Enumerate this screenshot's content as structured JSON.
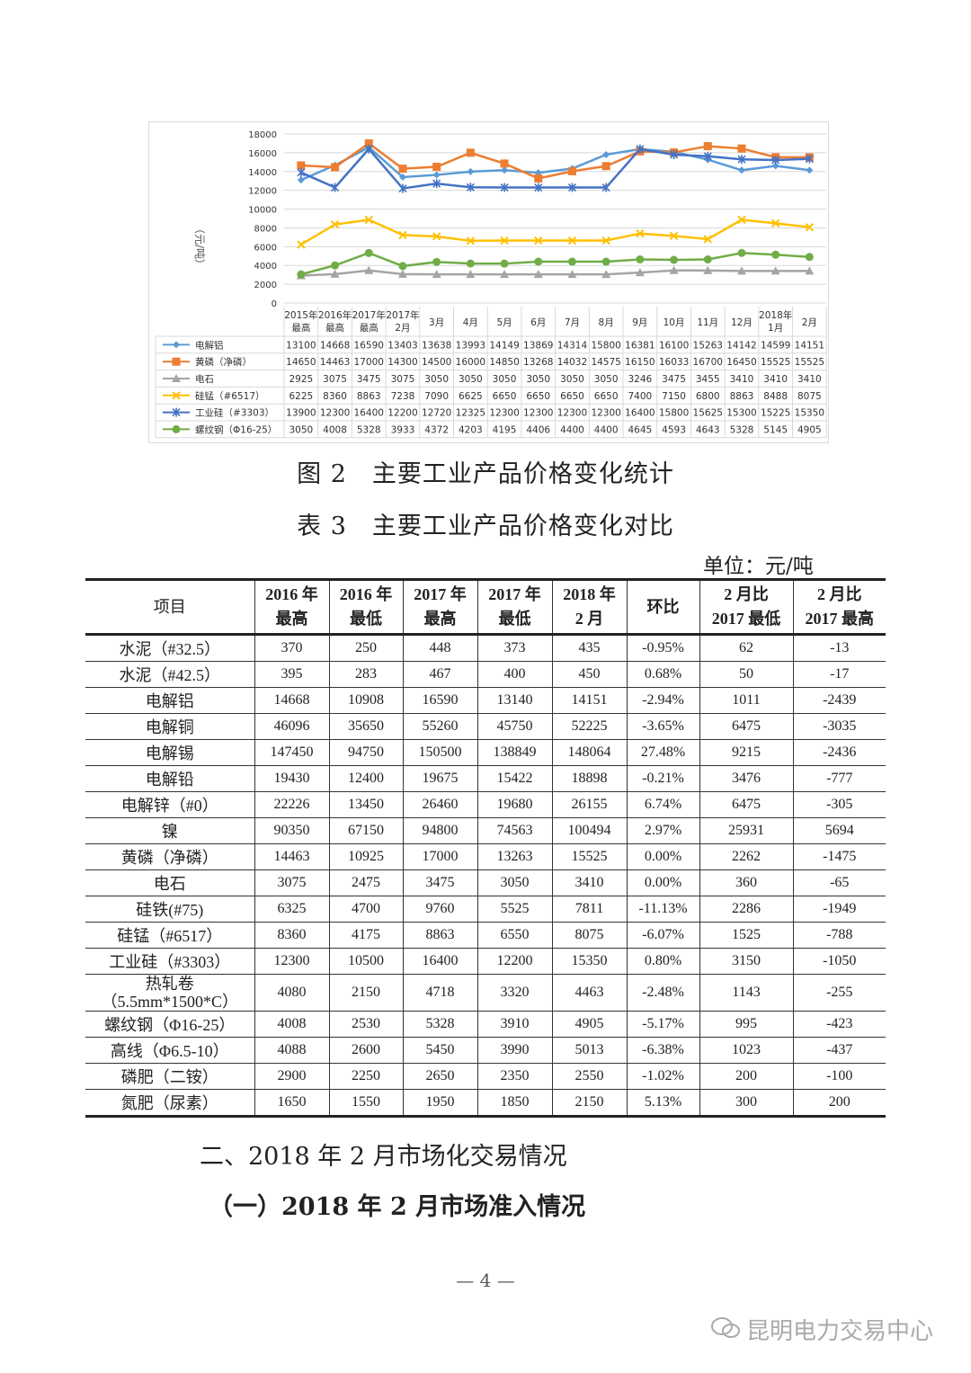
{
  "chart_data": {
    "type": "line",
    "ylabel": "（元/吨）",
    "ylim": [
      0,
      18000
    ],
    "yticks": [
      0,
      2000,
      4000,
      6000,
      8000,
      10000,
      12000,
      14000,
      16000,
      18000
    ],
    "grid": true,
    "legend": "table-left",
    "categories": [
      [
        "2015年",
        "最高"
      ],
      [
        "2016年",
        "最高"
      ],
      [
        "2017年",
        "最高"
      ],
      [
        "2017年",
        "2月"
      ],
      [
        "3月"
      ],
      [
        "4月"
      ],
      [
        "5月"
      ],
      [
        "6月"
      ],
      [
        "7月"
      ],
      [
        "8月"
      ],
      [
        "9月"
      ],
      [
        "10月"
      ],
      [
        "11月"
      ],
      [
        "12月"
      ],
      [
        "2018年",
        "1月"
      ],
      [
        "2月"
      ]
    ],
    "series": [
      {
        "name": "电解铝",
        "color": "#5b9bd5",
        "marker": "diamond",
        "values": [
          13100,
          14668,
          16590,
          13403,
          13638,
          13993,
          14149,
          13869,
          14314,
          15800,
          16381,
          16100,
          15263,
          14142,
          14599,
          14151
        ]
      },
      {
        "name": "黄磷（净磷）",
        "color": "#ed7d31",
        "marker": "square",
        "values": [
          14650,
          14463,
          17000,
          14300,
          14500,
          16000,
          14850,
          13268,
          14032,
          14575,
          16150,
          16033,
          16700,
          16450,
          15525,
          15525
        ]
      },
      {
        "name": "电石",
        "color": "#a5a5a5",
        "marker": "triangle",
        "values": [
          2925,
          3075,
          3475,
          3075,
          3050,
          3050,
          3050,
          3050,
          3050,
          3050,
          3246,
          3475,
          3455,
          3410,
          3410,
          3410
        ]
      },
      {
        "name": "硅锰（#6517）",
        "color": "#ffc000",
        "marker": "x",
        "values": [
          6225,
          8360,
          8863,
          7238,
          7090,
          6625,
          6650,
          6650,
          6650,
          6650,
          7400,
          7150,
          6800,
          8863,
          8488,
          8075
        ]
      },
      {
        "name": "工业硅（#3303）",
        "color": "#4472c4",
        "marker": "star",
        "values": [
          13900,
          12300,
          16400,
          12200,
          12720,
          12325,
          12300,
          12300,
          12300,
          12300,
          16400,
          15800,
          15625,
          15300,
          15225,
          15350
        ]
      },
      {
        "name": "螺纹钢（Φ16-25）",
        "color": "#70ad47",
        "marker": "circle",
        "values": [
          3050,
          4008,
          5328,
          3933,
          4372,
          4203,
          4195,
          4406,
          4400,
          4400,
          4645,
          4593,
          4643,
          5328,
          5145,
          4905
        ]
      }
    ]
  },
  "figure_caption": "图 2　主要工业产品价格变化统计",
  "table_caption": "表 3　主要工业产品价格变化对比",
  "unit": "单位：元/吨",
  "table": {
    "headers": [
      [
        "项目"
      ],
      [
        "2016 年",
        "最高"
      ],
      [
        "2016 年",
        "最低"
      ],
      [
        "2017 年",
        "最高"
      ],
      [
        "2017 年",
        "最低"
      ],
      [
        "2018 年",
        "2 月"
      ],
      [
        "环比"
      ],
      [
        "2 月比",
        "2017 最低"
      ],
      [
        "2 月比",
        "2017 最高"
      ]
    ],
    "rows": [
      [
        "水泥（#32.5）",
        "370",
        "250",
        "448",
        "373",
        "435",
        "-0.95%",
        "62",
        "-13"
      ],
      [
        "水泥（#42.5）",
        "395",
        "283",
        "467",
        "400",
        "450",
        "0.68%",
        "50",
        "-17"
      ],
      [
        "电解铝",
        "14668",
        "10908",
        "16590",
        "13140",
        "14151",
        "-2.94%",
        "1011",
        "-2439"
      ],
      [
        "电解铜",
        "46096",
        "35650",
        "55260",
        "45750",
        "52225",
        "-3.65%",
        "6475",
        "-3035"
      ],
      [
        "电解锡",
        "147450",
        "94750",
        "150500",
        "138849",
        "148064",
        "27.48%",
        "9215",
        "-2436"
      ],
      [
        "电解铅",
        "19430",
        "12400",
        "19675",
        "15422",
        "18898",
        "-0.21%",
        "3476",
        "-777"
      ],
      [
        "电解锌（#0）",
        "22226",
        "13450",
        "26460",
        "19680",
        "26155",
        "6.74%",
        "6475",
        "-305"
      ],
      [
        "镍",
        "90350",
        "67150",
        "94800",
        "74563",
        "100494",
        "2.97%",
        "25931",
        "5694"
      ],
      [
        "黄磷（净磷）",
        "14463",
        "10925",
        "17000",
        "13263",
        "15525",
        "0.00%",
        "2262",
        "-1475"
      ],
      [
        "电石",
        "3075",
        "2475",
        "3475",
        "3050",
        "3410",
        "0.00%",
        "360",
        "-65"
      ],
      [
        "硅铁(#75)",
        "6325",
        "4700",
        "9760",
        "5525",
        "7811",
        "-11.13%",
        "2286",
        "-1949"
      ],
      [
        "硅锰（#6517）",
        "8360",
        "4175",
        "8863",
        "6550",
        "8075",
        "-6.07%",
        "1525",
        "-788"
      ],
      [
        "工业硅（#3303）",
        "12300",
        "10500",
        "16400",
        "12200",
        "15350",
        "0.80%",
        "3150",
        "-1050"
      ],
      [
        "热轧卷（5.5mm*1500*C）",
        "4080",
        "2150",
        "4718",
        "3320",
        "4463",
        "-2.48%",
        "1143",
        "-255"
      ],
      [
        "螺纹钢（Φ16-25）",
        "4008",
        "2530",
        "5328",
        "3910",
        "4905",
        "-5.17%",
        "995",
        "-423"
      ],
      [
        "高线（Φ6.5-10）",
        "4088",
        "2600",
        "5450",
        "3990",
        "5013",
        "-6.38%",
        "1023",
        "-437"
      ],
      [
        "磷肥（二铵）",
        "2900",
        "2250",
        "2650",
        "2350",
        "2550",
        "-1.02%",
        "200",
        "-100"
      ],
      [
        "氮肥（尿素）",
        "1650",
        "1550",
        "1950",
        "1850",
        "2150",
        "5.13%",
        "300",
        "200"
      ]
    ]
  },
  "section_heading": "二、2018 年 2 月市场化交易情况",
  "subsection_heading": "（一）2018 年 2 月市场准入情况",
  "page_number": "— 4 —",
  "watermark": "昆明电力交易中心"
}
